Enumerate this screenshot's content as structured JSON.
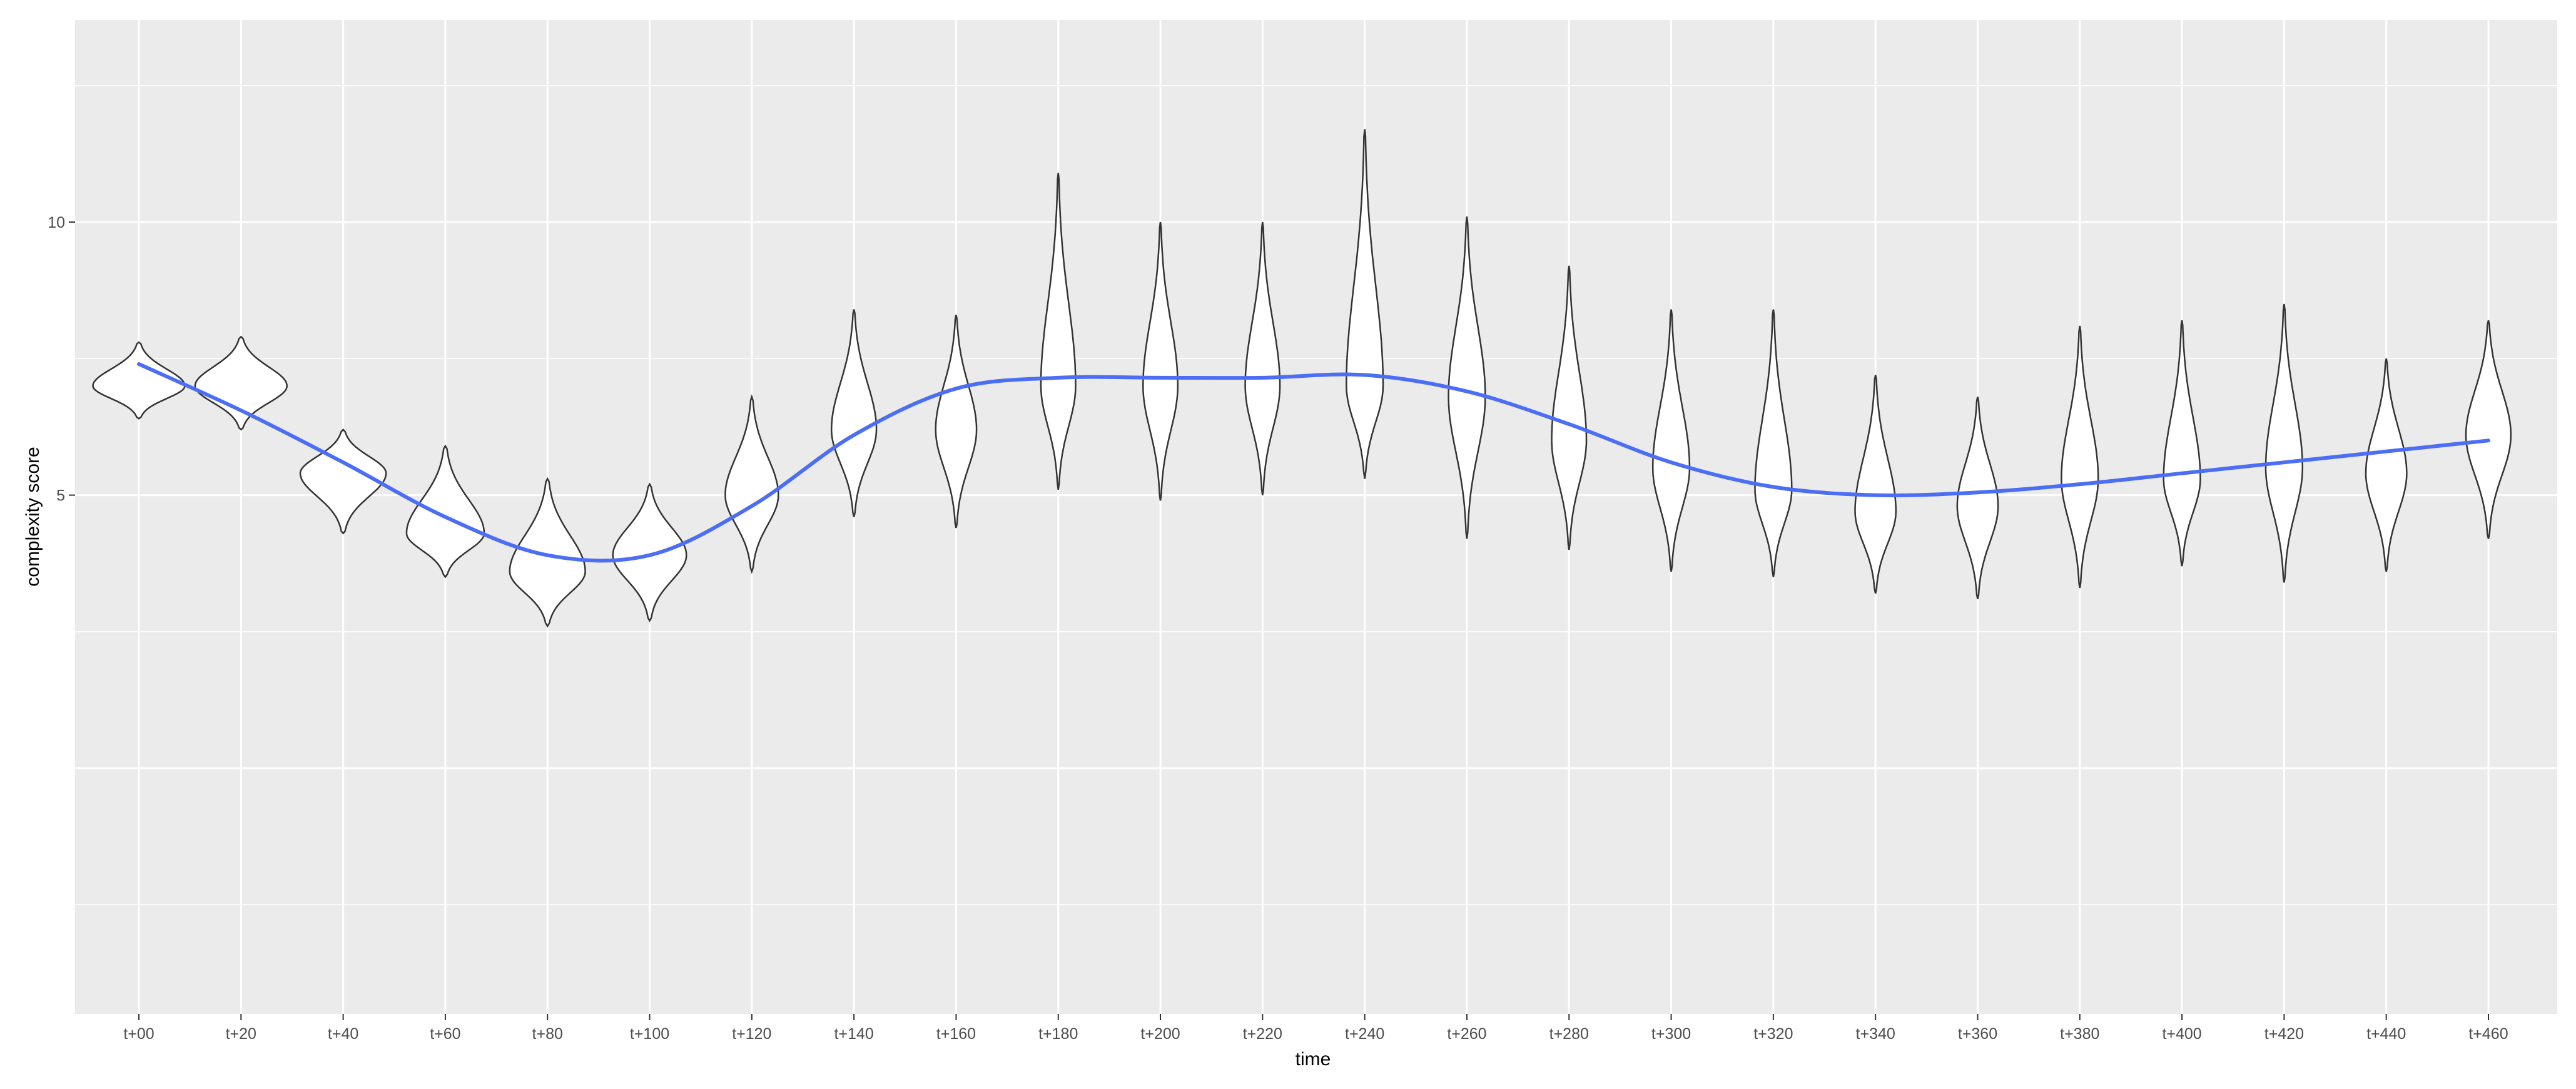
{
  "chart_data": {
    "type": "violin",
    "xlabel": "time",
    "ylabel": "complexity score",
    "ylim": [
      -4.5,
      13.7
    ],
    "yticks": [
      5,
      10
    ],
    "grid": true,
    "panel_background": "#ebebeb",
    "violin_fill": "#ffffff",
    "violin_stroke": "#333333",
    "smooth_color": "#4c6ef5",
    "categories": [
      "t+00",
      "t+20",
      "t+40",
      "t+60",
      "t+80",
      "t+100",
      "t+120",
      "t+140",
      "t+160",
      "t+180",
      "t+200",
      "t+220",
      "t+240",
      "t+260",
      "t+280",
      "t+300",
      "t+320",
      "t+340",
      "t+360",
      "t+380",
      "t+400",
      "t+420",
      "t+440",
      "t+460"
    ],
    "violins": [
      {
        "min": 6.4,
        "max": 7.8,
        "median": 7.0,
        "width": 0.45
      },
      {
        "min": 6.2,
        "max": 7.9,
        "median": 7.0,
        "width": 0.45
      },
      {
        "min": 4.3,
        "max": 6.2,
        "median": 5.4,
        "width": 0.42
      },
      {
        "min": 3.5,
        "max": 5.9,
        "median": 4.3,
        "width": 0.38
      },
      {
        "min": 2.6,
        "max": 5.3,
        "median": 3.6,
        "width": 0.37
      },
      {
        "min": 2.7,
        "max": 5.2,
        "median": 3.9,
        "width": 0.36
      },
      {
        "min": 3.6,
        "max": 6.8,
        "median": 5.0,
        "width": 0.26
      },
      {
        "min": 4.6,
        "max": 8.4,
        "median": 6.2,
        "width": 0.22
      },
      {
        "min": 4.4,
        "max": 8.3,
        "median": 6.2,
        "width": 0.2
      },
      {
        "min": 5.1,
        "max": 10.9,
        "median": 7.0,
        "width": 0.17
      },
      {
        "min": 4.9,
        "max": 10.0,
        "median": 7.0,
        "width": 0.17
      },
      {
        "min": 5.0,
        "max": 10.0,
        "median": 7.0,
        "width": 0.17
      },
      {
        "min": 5.3,
        "max": 11.7,
        "median": 7.0,
        "width": 0.18
      },
      {
        "min": 4.2,
        "max": 10.1,
        "median": 6.8,
        "width": 0.18
      },
      {
        "min": 4.0,
        "max": 9.2,
        "median": 6.0,
        "width": 0.17
      },
      {
        "min": 3.6,
        "max": 8.4,
        "median": 5.5,
        "width": 0.18
      },
      {
        "min": 3.5,
        "max": 8.4,
        "median": 5.1,
        "width": 0.18
      },
      {
        "min": 3.2,
        "max": 7.2,
        "median": 4.7,
        "width": 0.2
      },
      {
        "min": 3.1,
        "max": 6.8,
        "median": 4.8,
        "width": 0.2
      },
      {
        "min": 3.3,
        "max": 8.1,
        "median": 5.3,
        "width": 0.18
      },
      {
        "min": 3.7,
        "max": 8.2,
        "median": 5.3,
        "width": 0.18
      },
      {
        "min": 3.4,
        "max": 8.5,
        "median": 5.5,
        "width": 0.18
      },
      {
        "min": 3.6,
        "max": 7.5,
        "median": 5.4,
        "width": 0.2
      },
      {
        "min": 4.2,
        "max": 8.2,
        "median": 6.1,
        "width": 0.22
      }
    ],
    "smooth": [
      7.4,
      6.55,
      5.6,
      4.6,
      3.9,
      3.9,
      4.8,
      6.1,
      6.95,
      7.15,
      7.15,
      7.15,
      7.2,
      6.9,
      6.3,
      5.6,
      5.15,
      5.0,
      5.05,
      5.2,
      5.4,
      5.6,
      5.8,
      6.0
    ]
  }
}
